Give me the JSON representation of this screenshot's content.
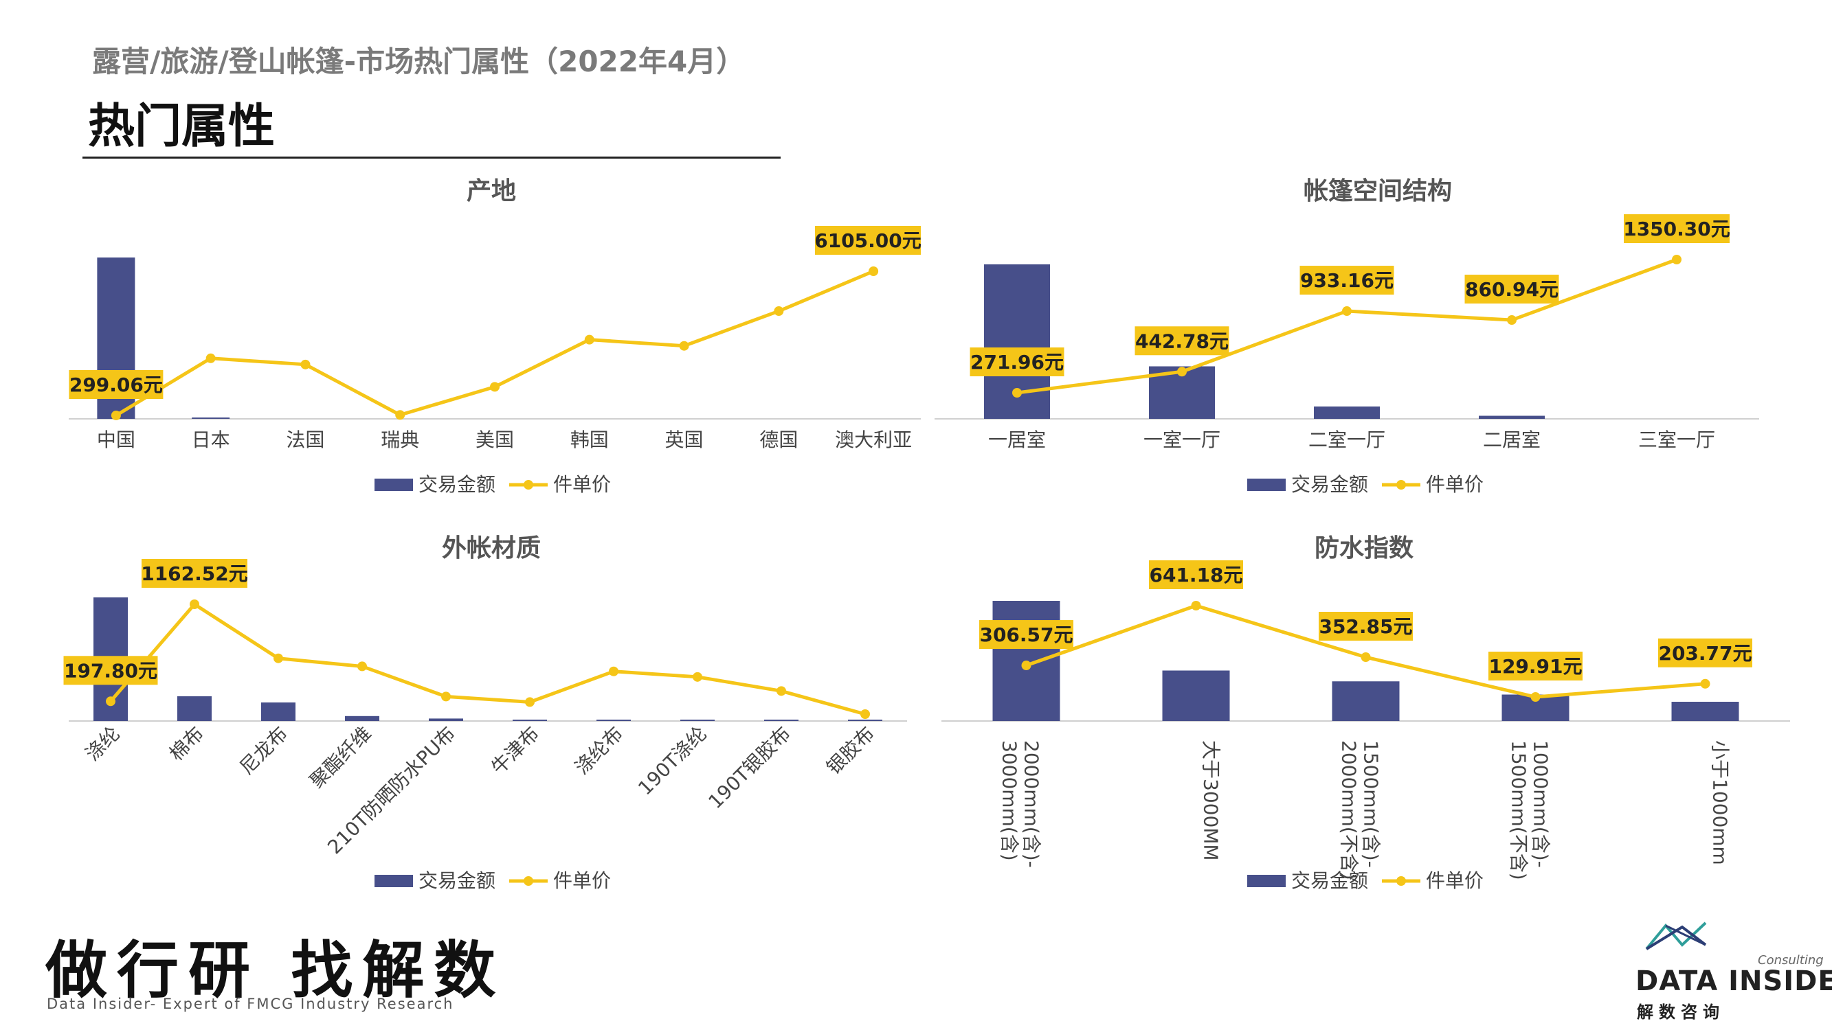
{
  "header": {
    "subtitle": "露营/旅游/登山帐篷-市场热门属性（2022年4月）",
    "title": "热门属性"
  },
  "colors": {
    "bar": "#474f8a",
    "line": "#f5c518",
    "label_bg": "#f5c518"
  },
  "legend": {
    "bar": "交易金额",
    "line": "件单价"
  },
  "chart_data": [
    {
      "type": "bar",
      "title": "产地",
      "categories": [
        "中国",
        "日本",
        "法国",
        "瑞典",
        "美国",
        "韩国",
        "英国",
        "德国",
        "澳大利亚"
      ],
      "series": [
        {
          "name": "交易金额",
          "type": "bar",
          "values": [
            100,
            0.5,
            0,
            0,
            0,
            0,
            0,
            0,
            0
          ]
        },
        {
          "name": "件单价",
          "type": "line",
          "values": [
            299.06,
            2600,
            2350,
            320,
            1450,
            3350,
            3100,
            4500,
            6105.0
          ]
        }
      ],
      "data_labels": [
        {
          "index": 0,
          "text": "299.06元"
        },
        {
          "index": 8,
          "text": "6105.00元"
        }
      ]
    },
    {
      "type": "bar",
      "title": "帐篷空间结构",
      "categories": [
        "一居室",
        "一室一厅",
        "二室一厅",
        "二居室",
        "三室一厅"
      ],
      "series": [
        {
          "name": "交易金额",
          "type": "bar",
          "values": [
            100,
            34,
            8,
            2,
            0
          ]
        },
        {
          "name": "件单价",
          "type": "line",
          "values": [
            271.96,
            442.78,
            933.16,
            860.94,
            1350.3
          ]
        }
      ],
      "data_labels": [
        {
          "index": 0,
          "text": "271.96元"
        },
        {
          "index": 1,
          "text": "442.78元"
        },
        {
          "index": 2,
          "text": "933.16元"
        },
        {
          "index": 3,
          "text": "860.94元"
        },
        {
          "index": 4,
          "text": "1350.30元"
        }
      ]
    },
    {
      "type": "bar",
      "title": "外帐材质",
      "categories": [
        "涤纶",
        "棉布",
        "尼龙布",
        "聚酯纤维",
        "210T防晒防水PU布",
        "牛津布",
        "涤纶布",
        "190T涤纶",
        "190T银胶布",
        "银胶布"
      ],
      "series": [
        {
          "name": "交易金额",
          "type": "bar",
          "values": [
            100,
            20,
            15,
            4,
            2,
            1,
            0.5,
            0.5,
            0.3,
            0.2
          ]
        },
        {
          "name": "件单价",
          "type": "line",
          "values": [
            197.8,
            1162.52,
            625,
            545,
            245,
            190,
            495,
            440,
            300,
            70
          ]
        }
      ],
      "data_labels": [
        {
          "index": 0,
          "text": "197.80元"
        },
        {
          "index": 1,
          "text": "1162.52元"
        }
      ]
    },
    {
      "type": "bar",
      "title": "防水指数",
      "categories": [
        "2000mm(含)-3000mm(含)",
        "大于3000MM",
        "1500mm(含)-2000mm(不含)",
        "1000mm(含)-1500mm(不含)",
        "小于1000mm"
      ],
      "series": [
        {
          "name": "交易金额",
          "type": "bar",
          "values": [
            100,
            42,
            33,
            22,
            16
          ]
        },
        {
          "name": "件单价",
          "type": "line",
          "values": [
            306.57,
            641.18,
            352.85,
            129.91,
            203.77
          ]
        }
      ],
      "data_labels": [
        {
          "index": 0,
          "text": "306.57元"
        },
        {
          "index": 1,
          "text": "641.18元"
        },
        {
          "index": 2,
          "text": "352.85元"
        },
        {
          "index": 3,
          "text": "129.91元"
        },
        {
          "index": 4,
          "text": "203.77元"
        }
      ]
    }
  ],
  "footer": {
    "slogan": "做行研 找解数",
    "slogan_sub": "Data Insider- Expert of FMCG Industry Research",
    "logo_consulting": "Consulting",
    "logo_name": "DATA INSIDER",
    "logo_cn": "解数咨询"
  }
}
